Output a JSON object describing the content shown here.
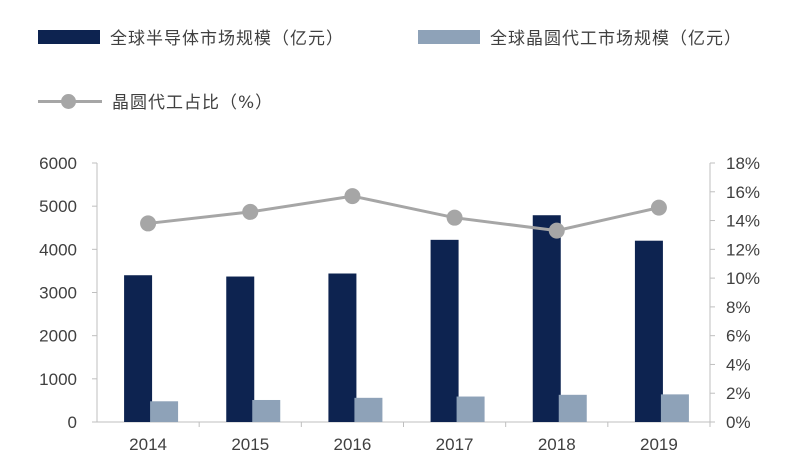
{
  "chart_data": {
    "type": "bar",
    "categories": [
      "2014",
      "2015",
      "2016",
      "2017",
      "2018",
      "2019"
    ],
    "series": [
      {
        "name": "全球半导体市场规模（亿元）",
        "type": "bar",
        "axis": "left",
        "color": "#0d2350",
        "values": [
          3400,
          3370,
          3440,
          4220,
          4790,
          4200
        ]
      },
      {
        "name": "全球晶圆代工市场规模（亿元）",
        "type": "bar",
        "axis": "left",
        "color": "#8ea2b8",
        "values": [
          480,
          510,
          560,
          590,
          630,
          640
        ]
      },
      {
        "name": "晶圆代工占比（%）",
        "type": "line",
        "axis": "right",
        "color": "#a6a6a6",
        "values": [
          13.8,
          14.6,
          15.7,
          14.2,
          13.3,
          14.9
        ]
      }
    ],
    "ylim": [
      0,
      6000
    ],
    "yticks": [
      "0",
      "1000",
      "2000",
      "3000",
      "4000",
      "5000",
      "6000"
    ],
    "y2lim": [
      0,
      18
    ],
    "y2ticks": [
      "0%",
      "2%",
      "4%",
      "6%",
      "8%",
      "10%",
      "12%",
      "14%",
      "16%",
      "18%"
    ],
    "legend_position": "top-left",
    "grid": false
  }
}
